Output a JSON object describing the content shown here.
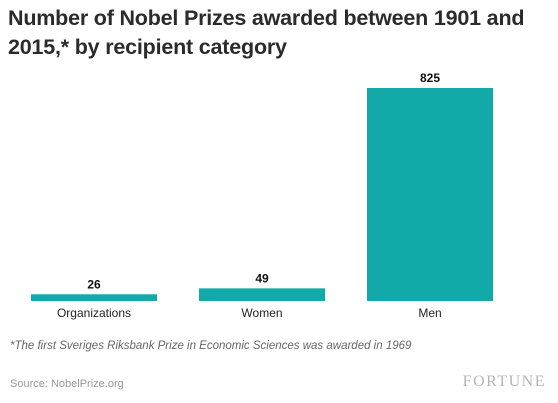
{
  "chart_data": {
    "type": "bar",
    "title": "Number of Nobel Prizes awarded between 1901 and 2015,* by recipient category",
    "categories": [
      "Organizations",
      "Women",
      "Men"
    ],
    "values": [
      26,
      49,
      825
    ],
    "value_labels": [
      "26",
      "49",
      "825"
    ],
    "xlabel": "",
    "ylabel": "",
    "ylim": [
      0,
      825
    ],
    "grid": false,
    "legend": "none",
    "bar_color": "#14a9a9"
  },
  "footnote": "*The first Sveriges Riksbank Prize in Economic Sciences was awarded in 1969",
  "source": "Source: NobelPrize.org",
  "brand": "FORTUNE"
}
